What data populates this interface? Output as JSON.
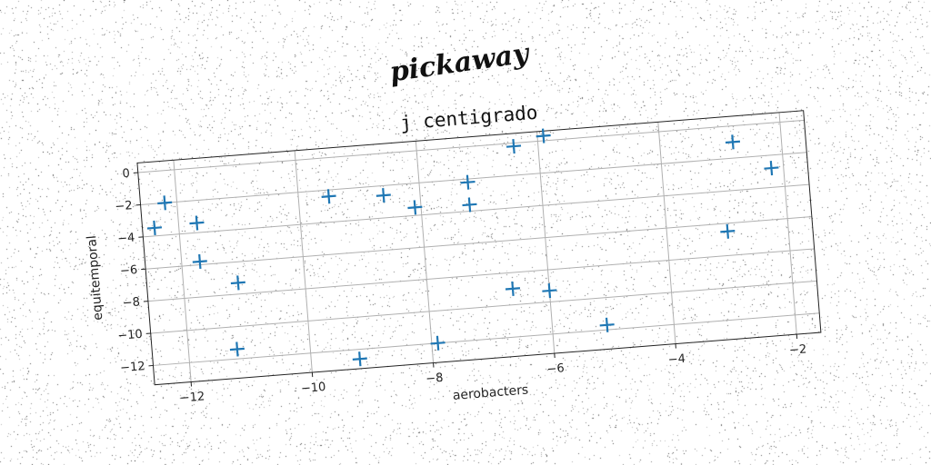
{
  "overlay_text": "pickaway",
  "chart_data": {
    "type": "scatter",
    "title": "j centigrado",
    "xlabel": "aerobacters",
    "ylabel": "equitemporal",
    "xlim": [
      -12.6,
      -1.6
    ],
    "ylim": [
      -13.2,
      0.6
    ],
    "xticks": [
      -12,
      -10,
      -8,
      -6,
      -4,
      -2
    ],
    "yticks": [
      0,
      -2,
      -4,
      -6,
      -8,
      -10,
      -12
    ],
    "xtick_labels": [
      "−12",
      "−10",
      "−8",
      "−6",
      "−4",
      "−2"
    ],
    "ytick_labels": [
      "0",
      "−2",
      "−4",
      "−6",
      "−8",
      "−10",
      "−12"
    ],
    "grid": true,
    "marker": "+",
    "color": "#1f77b4",
    "points": [
      {
        "x": -12.4,
        "y": -3.5
      },
      {
        "x": -12.2,
        "y": -2.0
      },
      {
        "x": -11.7,
        "y": -3.4
      },
      {
        "x": -11.7,
        "y": -5.8
      },
      {
        "x": -11.1,
        "y": -7.3
      },
      {
        "x": -11.2,
        "y": -11.4
      },
      {
        "x": -9.5,
        "y": -2.4
      },
      {
        "x": -9.2,
        "y": -12.6
      },
      {
        "x": -8.6,
        "y": -2.6
      },
      {
        "x": -8.1,
        "y": -3.5
      },
      {
        "x": -7.9,
        "y": -12.0
      },
      {
        "x": -7.2,
        "y": -2.2
      },
      {
        "x": -7.2,
        "y": -3.6
      },
      {
        "x": -6.6,
        "y": -9.0
      },
      {
        "x": -6.4,
        "y": -0.2
      },
      {
        "x": -6.0,
        "y": -9.3
      },
      {
        "x": -5.9,
        "y": 0.3
      },
      {
        "x": -5.1,
        "y": -11.7
      },
      {
        "x": -3.0,
        "y": -6.5
      },
      {
        "x": -2.8,
        "y": -1.0
      },
      {
        "x": -2.2,
        "y": -2.8
      }
    ]
  }
}
